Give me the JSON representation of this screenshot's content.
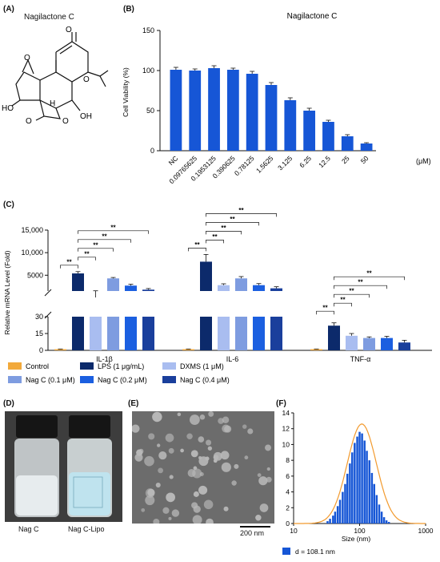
{
  "panels": {
    "A": {
      "label": "(A)",
      "title": "Nagilactone C"
    },
    "B": {
      "label": "(B)"
    },
    "C": {
      "label": "(C)"
    },
    "D": {
      "label": "(D)",
      "captions": [
        "Nag C",
        "Nag C-Lipo"
      ]
    },
    "E": {
      "label": "(E)",
      "scale_bar": "200 nm"
    },
    "F": {
      "label": "(F)"
    }
  },
  "structure": {
    "atom_labels": {
      "o1": "O",
      "o2": "O",
      "o3": "O",
      "ho1": "HO",
      "o4": "O",
      "h1": "H",
      "o5": "O",
      "oh1": "OH",
      "o6": "O"
    }
  },
  "colors": {
    "bar_blue": "#1656D6",
    "control": "#F2A93B",
    "lps": "#0C2A6B",
    "dxms": "#A9BDF0",
    "nag01": "#7E9CE0",
    "nag02": "#1B5FE0",
    "nag04": "#1A3F9C",
    "fit_curve": "#F29A2E"
  },
  "chart_data": [
    {
      "id": "B",
      "type": "bar",
      "title": "Nagilactone C",
      "ylabel": "Cell Viability (%)",
      "unit_label": "(μM)",
      "categories": [
        "NC",
        "0.09765625",
        "0.1953125",
        "0.390625",
        "0.78125",
        "1.5625",
        "3.125",
        "6.25",
        "12.5",
        "25",
        "50"
      ],
      "values": [
        101,
        100,
        103,
        101,
        96,
        82,
        63,
        50,
        36,
        18,
        9
      ],
      "errors": [
        3,
        2,
        3,
        2,
        3,
        3,
        3,
        3,
        2,
        2,
        1
      ],
      "yticks": [
        "0",
        "50",
        "100",
        "150"
      ],
      "ylim": [
        0,
        150
      ]
    },
    {
      "id": "C",
      "type": "bar",
      "ylabel": "Relative mRNA Level (Fold)",
      "groups": [
        "IL-1β",
        "IL-6",
        "TNF-α"
      ],
      "yticks_upper": [
        "5000",
        "10,000",
        "15,000"
      ],
      "yticks_lower": [
        "0",
        "15",
        "30"
      ],
      "series": [
        {
          "name": "Control",
          "values": [
            1,
            1,
            1
          ],
          "errors": [
            0.2,
            0.2,
            0.2
          ]
        },
        {
          "name": "LPS (1 μg/mL)",
          "values": [
            5400,
            8000,
            22
          ],
          "errors": [
            400,
            1600,
            2.5
          ]
        },
        {
          "name": "DXMS (1 μM)",
          "values": [
            1400,
            2800,
            13
          ],
          "errors": [
            150,
            300,
            2
          ]
        },
        {
          "name": "Nag C (0.1 μM)",
          "values": [
            4300,
            4300,
            11
          ],
          "errors": [
            200,
            400,
            1
          ]
        },
        {
          "name": "Nag C (0.2 μM)",
          "values": [
            2700,
            2800,
            11
          ],
          "errors": [
            300,
            350,
            1.5
          ]
        },
        {
          "name": "Nag C (0.4 μM)",
          "values": [
            1800,
            2100,
            7
          ],
          "errors": [
            250,
            350,
            2
          ]
        }
      ],
      "significance": "**",
      "legend_items": [
        "Control",
        "LPS (1 μg/mL)",
        "DXMS (1 μM)",
        "Nag C (0.1 μM)",
        "Nag C (0.2 μM)",
        "Nag C (0.4 μM)"
      ]
    },
    {
      "id": "F",
      "type": "bar",
      "xlabel": "Size (nm)",
      "xscale": "log",
      "xticks": [
        "10",
        "100",
        "1000"
      ],
      "yticks": [
        "0",
        "2",
        "4",
        "6",
        "8",
        "10",
        "12",
        "14"
      ],
      "ylim": [
        0,
        14
      ],
      "histogram": [
        {
          "x": 33,
          "y": 0.3
        },
        {
          "x": 36,
          "y": 0.6
        },
        {
          "x": 40,
          "y": 1.0
        },
        {
          "x": 43,
          "y": 1.5
        },
        {
          "x": 47,
          "y": 2.2
        },
        {
          "x": 51,
          "y": 3.0
        },
        {
          "x": 56,
          "y": 4.0
        },
        {
          "x": 61,
          "y": 5.0
        },
        {
          "x": 66,
          "y": 6.3
        },
        {
          "x": 72,
          "y": 7.6
        },
        {
          "x": 78,
          "y": 9.0
        },
        {
          "x": 85,
          "y": 10.2
        },
        {
          "x": 93,
          "y": 11.0
        },
        {
          "x": 101,
          "y": 11.6
        },
        {
          "x": 110,
          "y": 11.4
        },
        {
          "x": 120,
          "y": 10.5
        },
        {
          "x": 130,
          "y": 9.2
        },
        {
          "x": 142,
          "y": 8.0
        },
        {
          "x": 155,
          "y": 6.4
        },
        {
          "x": 168,
          "y": 5.0
        },
        {
          "x": 183,
          "y": 3.6
        },
        {
          "x": 200,
          "y": 2.4
        },
        {
          "x": 218,
          "y": 1.5
        },
        {
          "x": 237,
          "y": 0.8
        },
        {
          "x": 258,
          "y": 0.4
        },
        {
          "x": 281,
          "y": 0.2
        }
      ],
      "fit_peak": {
        "x": 108.1,
        "y": 12.6
      },
      "legend": "d = 108.1 nm"
    }
  ]
}
